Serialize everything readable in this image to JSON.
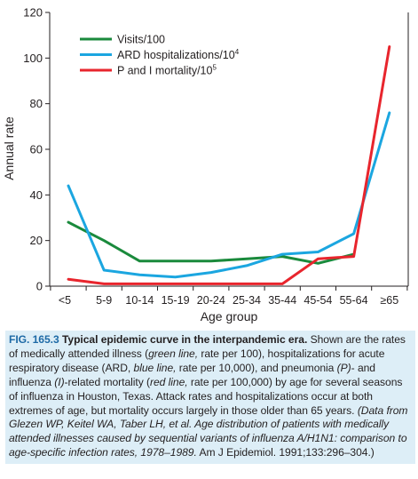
{
  "chart_data": {
    "type": "line",
    "xlabel": "Age group",
    "ylabel": "Annual rate",
    "ylim": [
      0,
      120
    ],
    "yticks": [
      0,
      20,
      40,
      60,
      80,
      100,
      120
    ],
    "categories": [
      "<5",
      "5-9",
      "10-14",
      "15-19",
      "20-24",
      "25-34",
      "35-44",
      "45-54",
      "55-64",
      "≥65"
    ],
    "legend_position": "top-left",
    "grid": false,
    "series": [
      {
        "name": "Visits/100",
        "color": "#1a8a3c",
        "values": [
          28,
          20,
          11,
          11,
          11,
          12,
          13,
          10,
          14,
          null
        ]
      },
      {
        "name": "ARD hospitalizations/10",
        "name_superscript": "4",
        "color": "#1ba6e0",
        "values": [
          44,
          7,
          5,
          4,
          6,
          9,
          14,
          15,
          23,
          76
        ]
      },
      {
        "name": "P and I mortality/10",
        "name_superscript": "5",
        "color": "#e8252d",
        "values": [
          3,
          1,
          1,
          1,
          1,
          1,
          1,
          12,
          13,
          105
        ]
      }
    ]
  },
  "caption": {
    "figure_label": "FIG. 165.3",
    "title": "Typical epidemic curve in the interpandemic era.",
    "text_1": " Shown are the rates of medically attended illness (",
    "italic_1": "green line,",
    "text_2": " rate per 100), hospitalizations for acute respiratory disease (ARD, ",
    "italic_2": "blue line,",
    "text_3": " rate per 10,000), and pneumonia ",
    "italic_3": "(P)",
    "text_4": "- and influenza ",
    "italic_4": "(I)",
    "text_5": "-related mortality (",
    "italic_5": "red line,",
    "text_6": " rate per 100,000) by age for several seasons of influenza in Houston, Texas. Attack rates and hospitalizations occur at both extremes of age, but mortality occurs largely in those older than 65 years. ",
    "italic_6": "(Data from Glezen WP, Keitel WA, Taber LH, et al. Age distribution of patients with medically attended illnesses caused by sequential variants of influenza A/H1N1: comparison to age-specific infection rates, 1978–1989.",
    "text_7": " Am J Epidemiol. 1991;133:296–304.)"
  }
}
